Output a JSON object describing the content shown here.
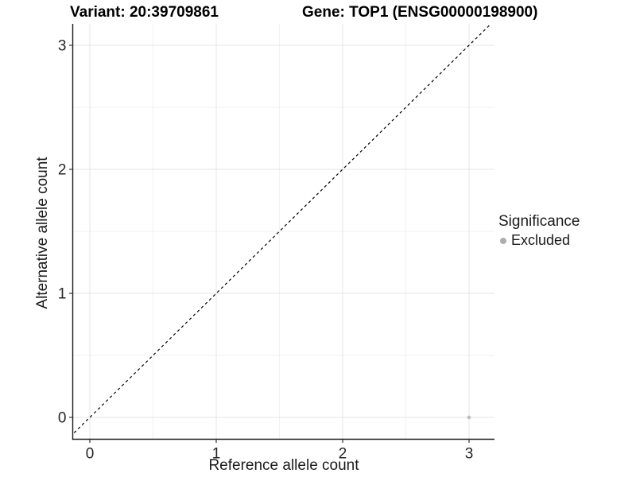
{
  "chart_data": {
    "type": "scatter",
    "titles": {
      "left": "Variant: 20:39709861",
      "right": "Gene: TOP1 (ENSG00000198900)"
    },
    "xlabel": "Reference allele count",
    "ylabel": "Alternative allele count",
    "x_ticks": [
      "0",
      "1",
      "2",
      "3"
    ],
    "y_ticks": [
      "0",
      "1",
      "2",
      "3"
    ],
    "x_tick_values": [
      0,
      1,
      2,
      3
    ],
    "y_tick_values": [
      0,
      1,
      2,
      3
    ],
    "minor_x": [
      0.5,
      1.5,
      2.5
    ],
    "minor_y": [
      0.5,
      1.5,
      2.5
    ],
    "xlim": [
      -0.13,
      3.2
    ],
    "ylim": [
      -0.17,
      3.17
    ],
    "grid": "major and minor gridlines on white background",
    "identity_line": {
      "equation": "y = x",
      "style": "dashed",
      "color": "#000000"
    },
    "points": [
      {
        "x": 3,
        "y": 0,
        "significance": "Excluded"
      }
    ],
    "legend": {
      "title": "Significance",
      "position": "right",
      "entries": [
        {
          "label": "Excluded",
          "color": "#adadad"
        }
      ]
    },
    "colors": {
      "point_excluded": "#bdbdbd",
      "grid_major": "#e4e4e4",
      "grid_minor": "#f1f1f1",
      "axis": "#1a1a1a",
      "tick": "#333333",
      "text": "#262626",
      "title_text": "#000000"
    }
  }
}
